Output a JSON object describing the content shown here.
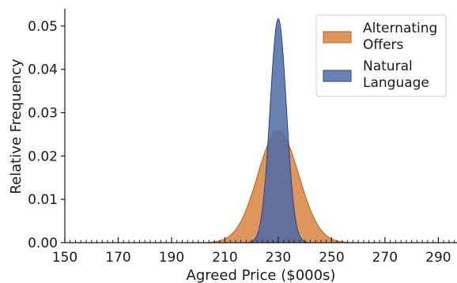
{
  "chart_data": {
    "type": "area",
    "title": "",
    "xlabel": "Agreed Price ($000s)",
    "ylabel": "Relative Frequency",
    "xlim": [
      150,
      297
    ],
    "ylim": [
      0,
      0.054
    ],
    "x_ticks": [
      150,
      170,
      190,
      210,
      230,
      250,
      270,
      290
    ],
    "x_tick_labels": [
      "150",
      "170",
      "190",
      "210",
      "230",
      "250",
      "270",
      "290"
    ],
    "x_minor_tick_step": 2,
    "y_ticks": [
      0.0,
      0.01,
      0.02,
      0.03,
      0.04,
      0.05
    ],
    "y_tick_labels": [
      "0.00",
      "0.01",
      "0.02",
      "0.03",
      "0.04",
      "0.05"
    ],
    "grid": false,
    "legend_position": "top-right",
    "series": [
      {
        "name": "Alternating Offers",
        "distribution": "normal",
        "mean": 230,
        "std": 7.7,
        "peak": 0.0258,
        "color": "#d8843f",
        "edge_color": "#c0601a",
        "opacity": 0.85
      },
      {
        "name": "Natural Language",
        "distribution": "normal",
        "mean": 230,
        "std": 3.05,
        "peak": 0.0517,
        "color": "#4c6ba6",
        "edge_color": "#2a4584",
        "opacity": 0.85
      }
    ],
    "legend": [
      {
        "line1": "Alternating",
        "line2": "Offers"
      },
      {
        "line1": "Natural",
        "line2": "Language"
      }
    ]
  }
}
